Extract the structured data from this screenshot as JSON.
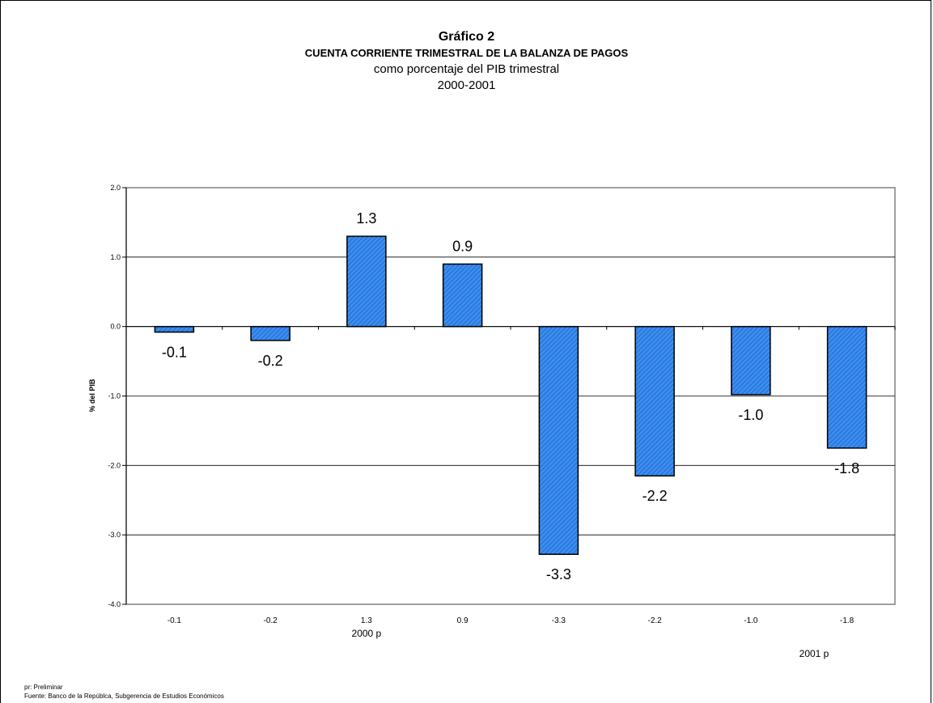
{
  "titles": {
    "main": "Gráfico 2",
    "sub1": "CUENTA CORRIENTE TRIMESTRAL DE LA BALANZA DE PAGOS",
    "sub2": "como porcentaje del PIB  trimestral",
    "sub3": "2000-2001"
  },
  "notes": {
    "line1": "pr: Preliminar",
    "line2": "Fuente: Banco de la Repúblca, Subgerencia de Estudios Económicos"
  },
  "chart_data": {
    "type": "bar",
    "title": "CUENTA CORRIENTE TRIMESTRAL DE LA BALANZA DE PAGOS",
    "ylabel": "% del PIB",
    "categories": [
      "-0.1",
      "-0.2",
      "1.3",
      "0.9",
      "-3.3",
      "-2.2",
      "-1.0",
      "-1.8"
    ],
    "values": [
      -0.08,
      -0.2,
      1.3,
      0.9,
      -3.28,
      -2.15,
      -0.98,
      -1.75
    ],
    "data_labels": [
      "-0.1",
      "-0.2",
      "1.3",
      "0.9",
      "-3.3",
      "-2.2",
      "-1.0",
      "-1.8"
    ],
    "yticks": [
      "2.0",
      "1.0",
      "0.0",
      "-1.0",
      "-2.0",
      "-3.0",
      "-4.0"
    ],
    "ylim": [
      -4,
      2
    ],
    "year_labels": [
      "2000  p",
      "2001 p"
    ],
    "grid": true,
    "bar_color": "#3b8ef0",
    "bar_hatch_color": "#1f5fc4"
  }
}
